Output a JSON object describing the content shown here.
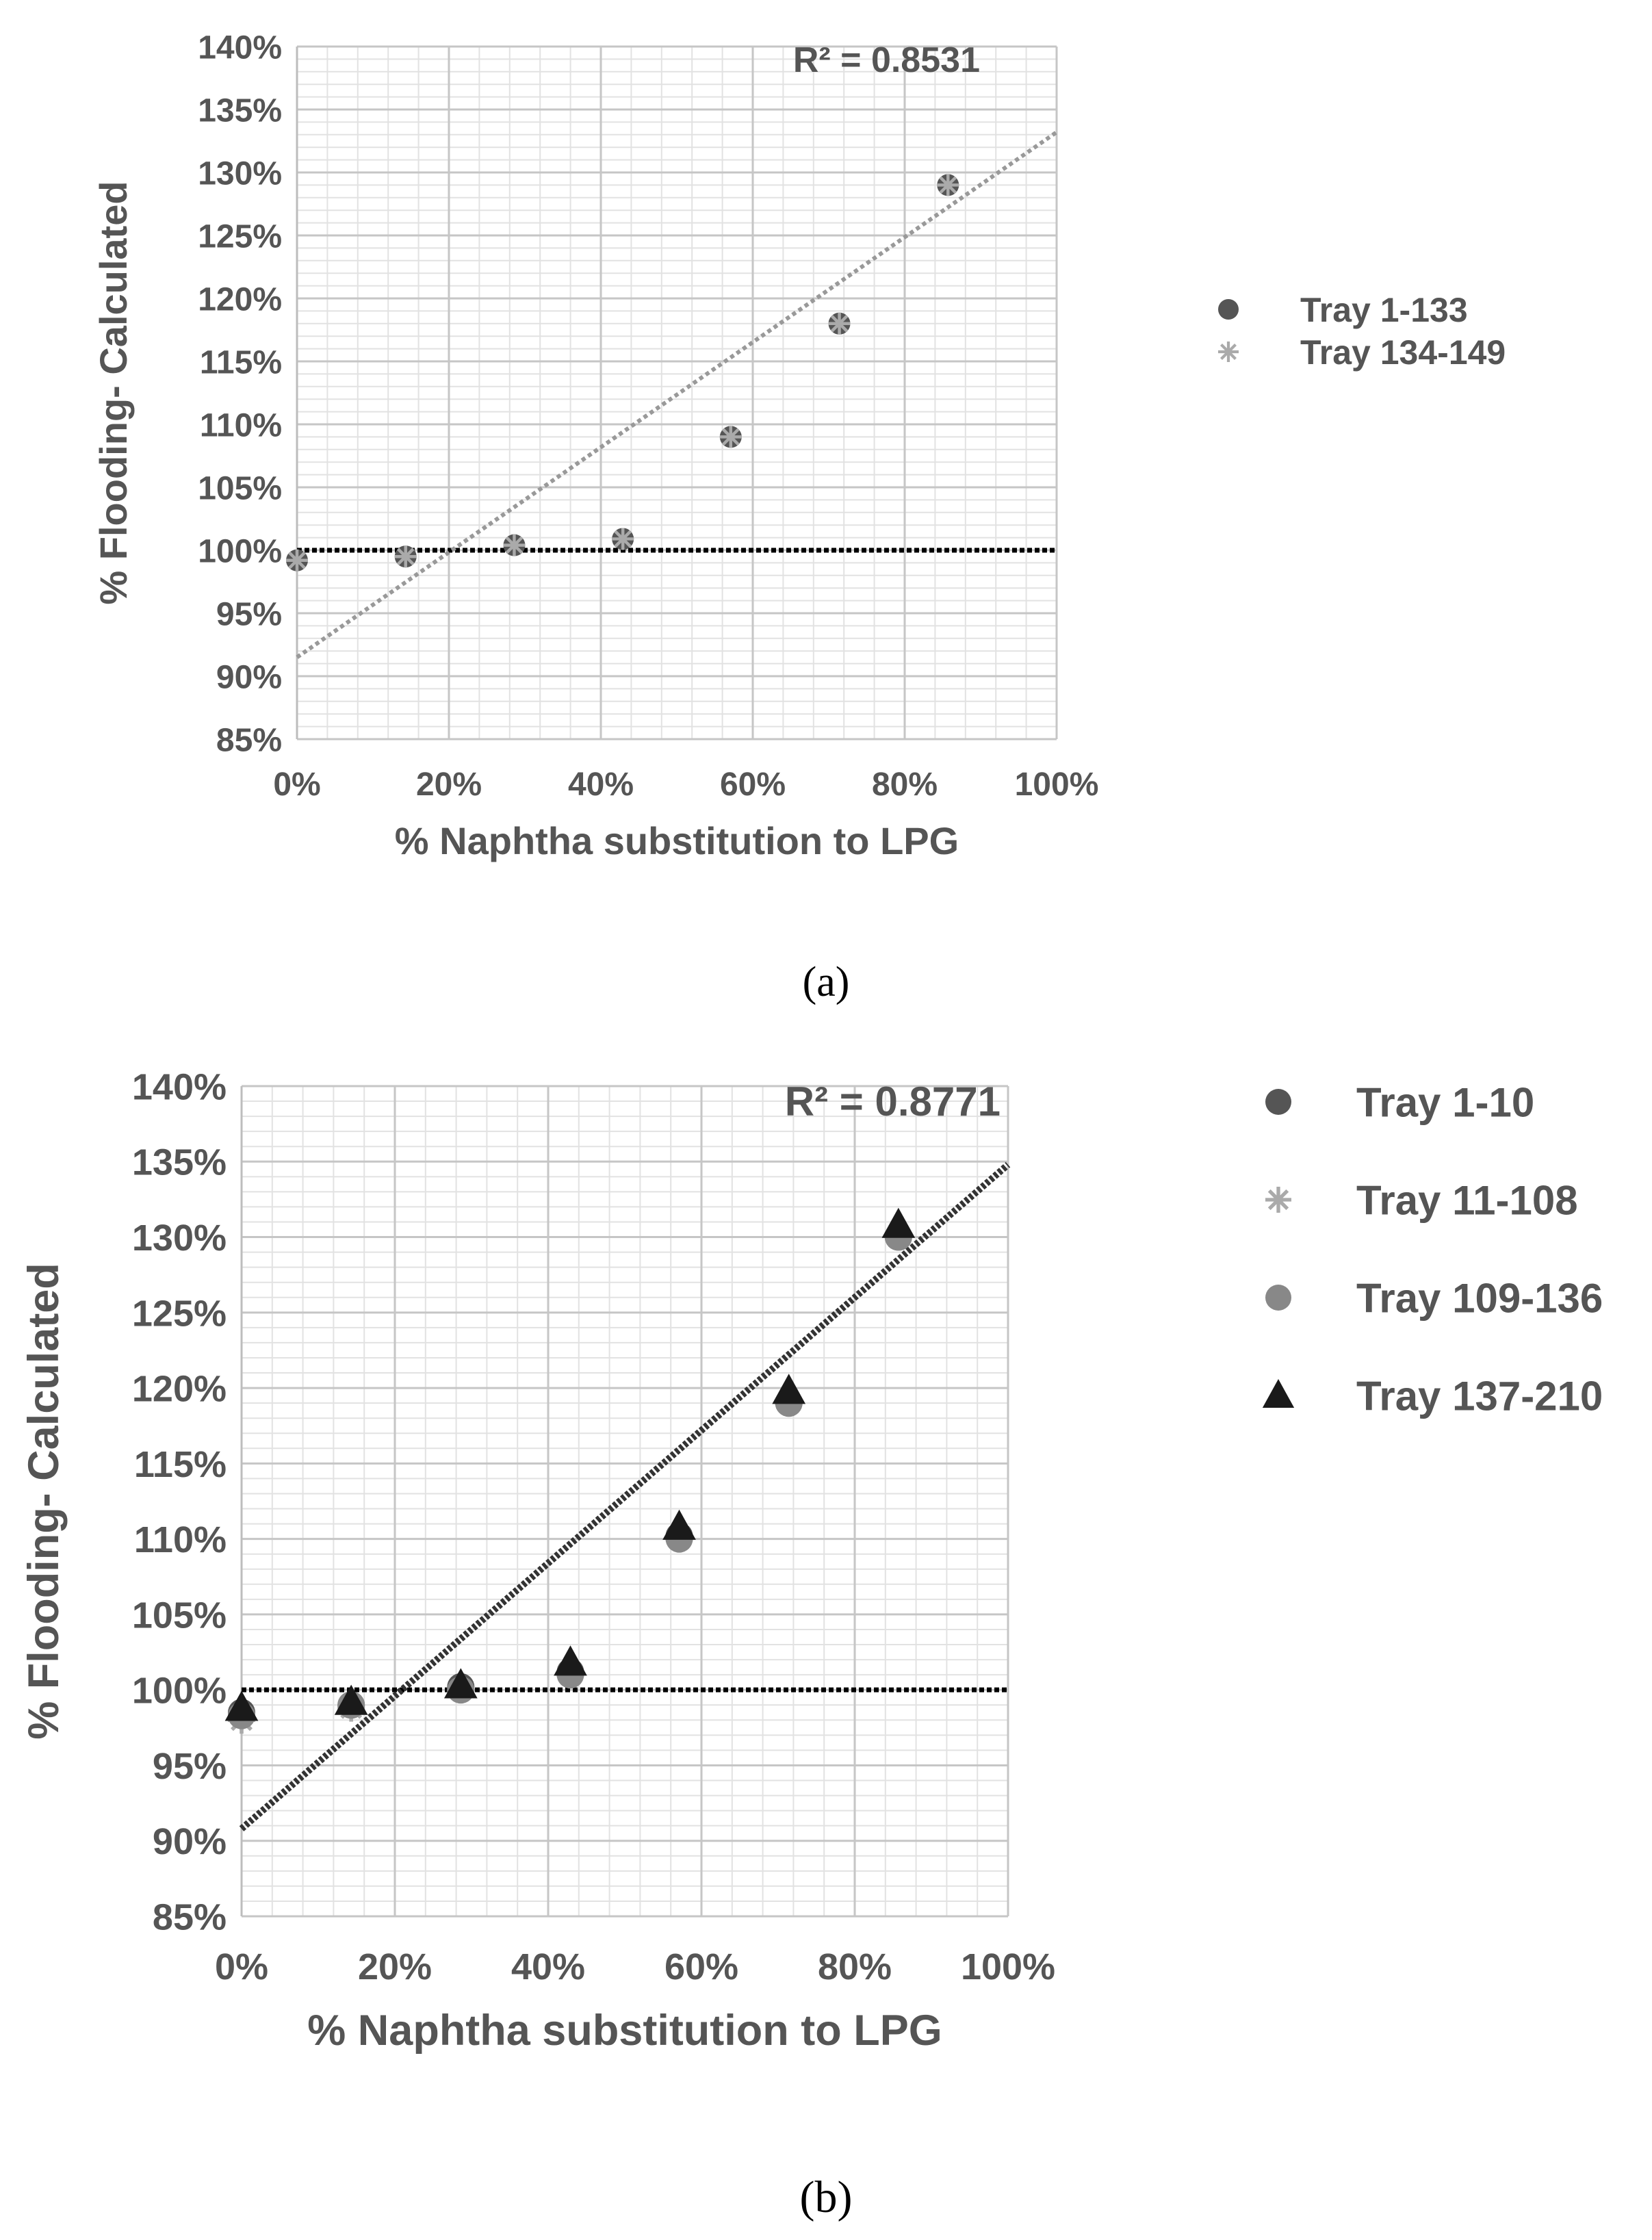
{
  "chart_data": [
    {
      "type": "scatter",
      "caption": "(a)",
      "xlabel": "% Naphtha substitution to LPG",
      "ylabel": "% Flooding- Calculated",
      "xlim": [
        0,
        100
      ],
      "ylim": [
        85,
        140
      ],
      "x_ticks": [
        "0%",
        "20%",
        "40%",
        "60%",
        "80%",
        "100%"
      ],
      "y_ticks": [
        "85%",
        "90%",
        "95%",
        "100%",
        "105%",
        "110%",
        "115%",
        "120%",
        "125%",
        "130%",
        "135%",
        "140%"
      ],
      "grid": true,
      "r2_label": "R² = 0.8531",
      "reference_line": {
        "y": 100,
        "style": "dotted",
        "color": "#000000"
      },
      "trendline": {
        "x": [
          0,
          100
        ],
        "y": [
          91.5,
          133.2
        ],
        "style": "dotted",
        "color": "#999999"
      },
      "legend_position": "right",
      "series": [
        {
          "name": "Tray 1-133",
          "marker": "circle",
          "color": "#555555",
          "x": [
            0,
            14.3,
            28.6,
            42.9,
            57.1,
            71.4,
            85.7
          ],
          "y": [
            99.2,
            99.5,
            100.4,
            100.9,
            109.0,
            118.0,
            129.0
          ]
        },
        {
          "name": "Tray 134-149",
          "marker": "star",
          "color": "#aaaaaa",
          "x": [
            0,
            14.3,
            28.6,
            42.9,
            57.1,
            71.4,
            85.7
          ],
          "y": [
            99.2,
            99.5,
            100.4,
            100.9,
            109.0,
            118.0,
            129.0
          ]
        }
      ]
    },
    {
      "type": "scatter",
      "caption": "(b)",
      "xlabel": "% Naphtha substitution to LPG",
      "ylabel": "% Flooding- Calculated",
      "xlim": [
        0,
        100
      ],
      "ylim": [
        85,
        140
      ],
      "x_ticks": [
        "0%",
        "20%",
        "40%",
        "60%",
        "80%",
        "100%"
      ],
      "y_ticks": [
        "85%",
        "90%",
        "95%",
        "100%",
        "105%",
        "110%",
        "115%",
        "120%",
        "125%",
        "130%",
        "135%",
        "140%"
      ],
      "grid": true,
      "r2_label": "R² = 0.8771",
      "reference_line": {
        "y": 100,
        "style": "dotted",
        "color": "#000000"
      },
      "trendline": {
        "x": [
          0,
          100
        ],
        "y": [
          90.8,
          134.8
        ],
        "style": "dotted",
        "color": "#333333"
      },
      "legend_position": "right",
      "series": [
        {
          "name": "Tray 1-10",
          "marker": "circle",
          "color": "#555555",
          "x": [
            0,
            14.3,
            28.6,
            42.9,
            57.1,
            71.4,
            85.7
          ],
          "y": [
            98.5,
            99.0,
            100.2,
            101.2,
            110.2,
            119.0,
            130.0
          ]
        },
        {
          "name": "Tray 11-108",
          "marker": "star",
          "color": "#aaaaaa",
          "x": [
            0,
            14.3,
            28.6,
            42.9,
            57.1,
            71.4,
            85.7
          ],
          "y": [
            98.0,
            98.8,
            100.0,
            101.0,
            110.0,
            119.0,
            130.0
          ]
        },
        {
          "name": "Tray 109-136",
          "marker": "circle",
          "color": "#888888",
          "x": [
            0,
            14.3,
            28.6,
            42.9,
            57.1,
            71.4,
            85.7
          ],
          "y": [
            98.3,
            99.0,
            100.0,
            101.0,
            110.0,
            119.0,
            130.0
          ]
        },
        {
          "name": "Tray 137-210",
          "marker": "triangle",
          "color": "#1a1a1a",
          "x": [
            0,
            14.3,
            28.6,
            42.9,
            57.1,
            71.4,
            85.7
          ],
          "y": [
            98.8,
            99.2,
            100.3,
            101.8,
            110.8,
            119.8,
            130.8
          ]
        }
      ]
    }
  ]
}
